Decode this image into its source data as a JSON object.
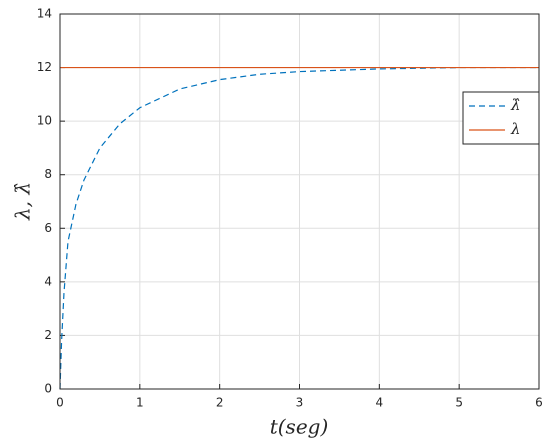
{
  "chart_data": {
    "type": "line",
    "x_label": "t(seg)",
    "y_label": "λ, λ̂",
    "x": [
      0,
      0.02,
      0.05,
      0.1,
      0.2,
      0.3,
      0.5,
      0.75,
      1,
      1.5,
      2,
      2.5,
      3,
      4,
      5,
      6
    ],
    "series": [
      {
        "name": "λ̂",
        "color": "#0072bd",
        "linestyle": "dashed",
        "values": [
          0,
          1.8,
          3.6,
          5.5,
          6.9,
          7.8,
          9.0,
          9.9,
          10.5,
          11.2,
          11.55,
          11.75,
          11.85,
          11.95,
          12,
          12
        ]
      },
      {
        "name": "λ",
        "color": "#d95319",
        "linestyle": "solid",
        "values": [
          12,
          12,
          12,
          12,
          12,
          12,
          12,
          12,
          12,
          12,
          12,
          12,
          12,
          12,
          12,
          12
        ]
      }
    ],
    "xlim": [
      0,
      6
    ],
    "xticks": [
      0,
      1,
      2,
      3,
      4,
      5,
      6
    ],
    "ylim": [
      0,
      14
    ],
    "yticks": [
      0,
      2,
      4,
      6,
      8,
      10,
      12,
      14
    ],
    "grid": true,
    "legend": "east"
  }
}
